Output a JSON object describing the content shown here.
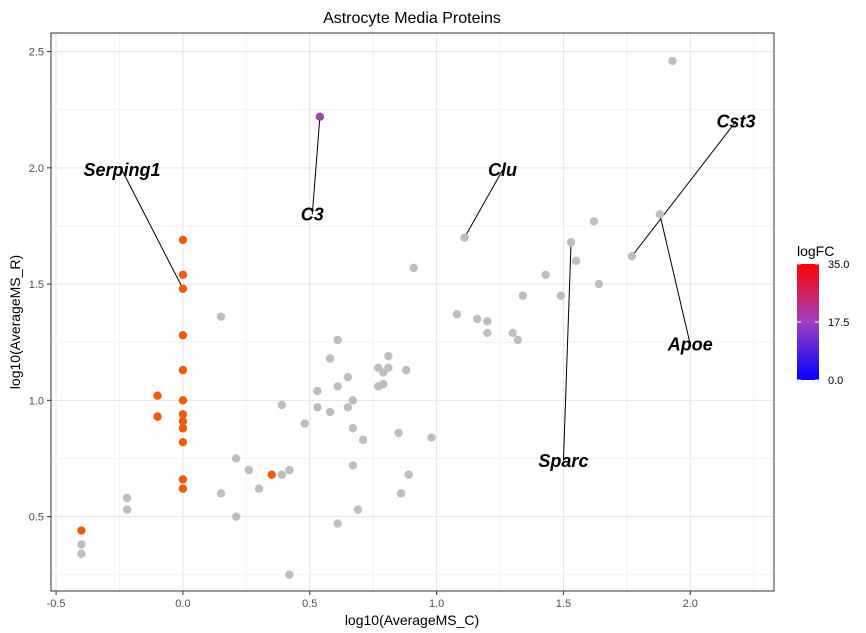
{
  "chart_data": {
    "type": "scatter",
    "title": "Astrocyte Media Proteins",
    "xlabel": "log10(AverageMS_C)",
    "ylabel": "log10(AverageMS_R)",
    "xlim": [
      -0.52,
      2.33
    ],
    "ylim": [
      0.18,
      2.58
    ],
    "x_ticks": [
      -0.5,
      0.0,
      0.5,
      1.0,
      1.5,
      2.0
    ],
    "x_tick_labels": [
      "-0.5",
      "0.0",
      "0.5",
      "1.0",
      "1.5",
      "2.0"
    ],
    "y_ticks": [
      0.5,
      1.0,
      1.5,
      2.0,
      2.5
    ],
    "y_tick_labels": [
      "0.5",
      "1.0",
      "1.5",
      "2.0",
      "2.5"
    ],
    "grid": true,
    "legend": {
      "title": "logFC",
      "min": 0.0,
      "max": 35.0,
      "ticks": [
        "0.0",
        "17.5",
        "35.0"
      ],
      "colors": [
        "#0000ff",
        "#a040c0",
        "#ff0000"
      ],
      "position": "right"
    },
    "colors": {
      "insignificant": "#bebebe",
      "significant": "#f05a0a",
      "c3": "#9b46b4"
    },
    "points_grey": [
      [
        -0.4,
        0.38
      ],
      [
        -0.4,
        0.34
      ],
      [
        -0.22,
        0.58
      ],
      [
        -0.22,
        0.53
      ],
      [
        0.15,
        1.36
      ],
      [
        0.15,
        0.6
      ],
      [
        0.21,
        0.75
      ],
      [
        0.21,
        0.5
      ],
      [
        0.26,
        0.7
      ],
      [
        0.3,
        0.62
      ],
      [
        0.39,
        0.98
      ],
      [
        0.39,
        0.68
      ],
      [
        0.42,
        0.7
      ],
      [
        0.42,
        0.25
      ],
      [
        0.48,
        0.9
      ],
      [
        0.53,
        1.04
      ],
      [
        0.53,
        0.97
      ],
      [
        0.58,
        1.18
      ],
      [
        0.58,
        0.95
      ],
      [
        0.61,
        1.26
      ],
      [
        0.61,
        1.06
      ],
      [
        0.61,
        0.47
      ],
      [
        0.65,
        1.1
      ],
      [
        0.65,
        0.97
      ],
      [
        0.67,
        1.0
      ],
      [
        0.67,
        0.88
      ],
      [
        0.67,
        0.72
      ],
      [
        0.69,
        0.53
      ],
      [
        0.71,
        0.83
      ],
      [
        0.77,
        1.14
      ],
      [
        0.77,
        1.06
      ],
      [
        0.79,
        1.12
      ],
      [
        0.79,
        1.07
      ],
      [
        0.81,
        1.19
      ],
      [
        0.81,
        1.14
      ],
      [
        0.85,
        0.86
      ],
      [
        0.86,
        0.6
      ],
      [
        0.88,
        1.13
      ],
      [
        0.89,
        0.68
      ],
      [
        0.91,
        1.57
      ],
      [
        0.98,
        0.84
      ],
      [
        1.08,
        1.37
      ],
      [
        1.11,
        1.7
      ],
      [
        1.16,
        1.35
      ],
      [
        1.2,
        1.34
      ],
      [
        1.2,
        1.29
      ],
      [
        1.3,
        1.29
      ],
      [
        1.32,
        1.26
      ],
      [
        1.34,
        1.45
      ],
      [
        1.43,
        1.54
      ],
      [
        1.49,
        1.45
      ],
      [
        1.53,
        1.68
      ],
      [
        1.55,
        1.6
      ],
      [
        1.62,
        1.77
      ],
      [
        1.64,
        1.5
      ],
      [
        1.77,
        1.62
      ],
      [
        1.88,
        1.8
      ],
      [
        1.93,
        2.46
      ]
    ],
    "points_significant": [
      [
        -0.4,
        0.44
      ],
      [
        -0.1,
        1.02
      ],
      [
        -0.1,
        0.93
      ],
      [
        0.0,
        1.69
      ],
      [
        0.0,
        1.54
      ],
      [
        0.0,
        1.48
      ],
      [
        0.0,
        1.28
      ],
      [
        0.0,
        1.13
      ],
      [
        0.0,
        1.0
      ],
      [
        0.0,
        0.94
      ],
      [
        0.0,
        0.91
      ],
      [
        0.0,
        0.88
      ],
      [
        0.0,
        0.82
      ],
      [
        0.0,
        0.66
      ],
      [
        0.0,
        0.62
      ],
      [
        0.35,
        0.68
      ]
    ],
    "point_c3": [
      0.54,
      2.22
    ],
    "annotations": [
      {
        "text": "Serping1",
        "point": [
          0.0,
          1.48
        ],
        "label": [
          -0.24,
          1.99
        ]
      },
      {
        "text": "C3",
        "point": [
          0.54,
          2.22
        ],
        "label": [
          0.51,
          1.8
        ]
      },
      {
        "text": "Clu",
        "point": [
          1.11,
          1.7
        ],
        "label": [
          1.26,
          1.99
        ]
      },
      {
        "text": "Cst3",
        "point": [
          1.77,
          1.62
        ],
        "label": [
          2.18,
          2.2
        ]
      },
      {
        "text": "Apoe",
        "point": [
          1.88,
          1.8
        ],
        "label": [
          2.0,
          1.24
        ]
      },
      {
        "text": "Sparc",
        "point": [
          1.53,
          1.68
        ],
        "label": [
          1.5,
          0.74
        ]
      }
    ]
  }
}
